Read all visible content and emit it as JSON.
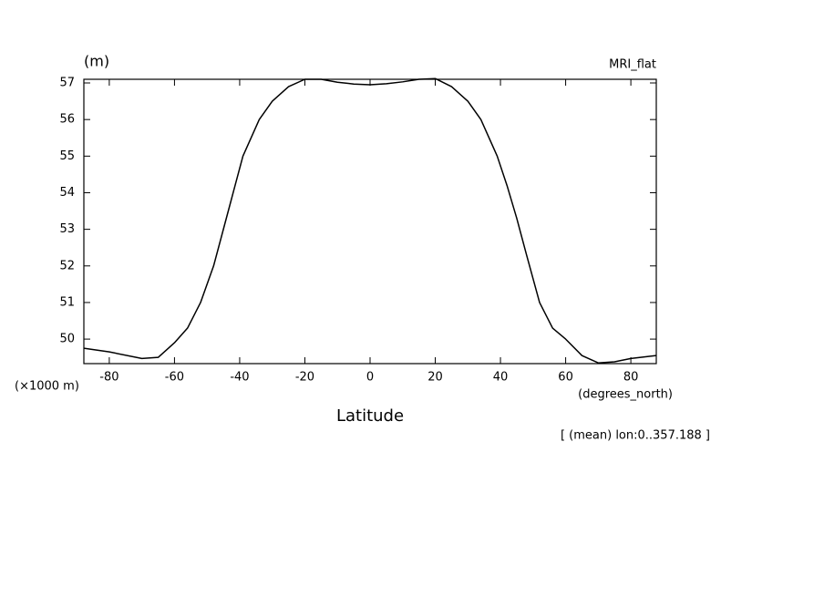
{
  "chart_data": {
    "type": "line",
    "title": "MRI_flat",
    "y_unit": "(m)",
    "y_scale_label": "(×1000 m)",
    "x_label": "Latitude",
    "x_unit": "(degrees_north)",
    "footnote": "[ (mean) lon:0..357.188 ]",
    "x": [
      -87.8,
      -80,
      -70,
      -65,
      -60,
      -56,
      -52,
      -48,
      -45,
      -42,
      -39,
      -34,
      -30,
      -25,
      -20,
      -15,
      -10,
      -5,
      0,
      5,
      10,
      15,
      20,
      25,
      30,
      34,
      39,
      42,
      45,
      48,
      52,
      56,
      60,
      65,
      70,
      75,
      80,
      87.8
    ],
    "values": [
      49.75,
      49.65,
      49.47,
      49.5,
      49.9,
      50.3,
      51.0,
      52.0,
      53.0,
      54.0,
      55.0,
      56.0,
      56.5,
      56.9,
      57.1,
      57.1,
      57.02,
      56.97,
      56.95,
      56.98,
      57.03,
      57.1,
      57.12,
      56.9,
      56.5,
      56.0,
      55.0,
      54.2,
      53.3,
      52.3,
      51.0,
      50.3,
      50.0,
      49.55,
      49.35,
      49.38,
      49.47,
      49.55
    ],
    "color": "#000000",
    "xlim": [
      -87.8,
      87.8
    ],
    "ylim": [
      49.33,
      57.1
    ],
    "xticks": [
      -80,
      -60,
      -40,
      -20,
      0,
      20,
      40,
      60,
      80
    ],
    "yticks": [
      50,
      51,
      52,
      53,
      54,
      55,
      56,
      57
    ]
  }
}
